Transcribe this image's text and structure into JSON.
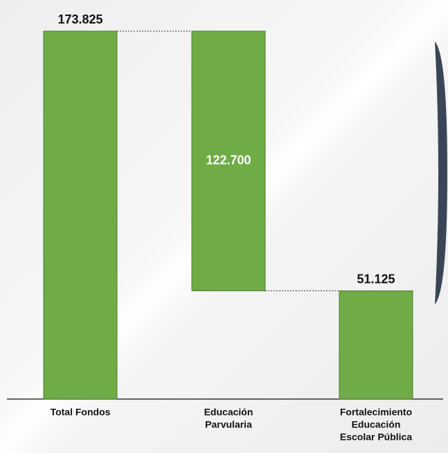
{
  "chart_data": {
    "type": "waterfall",
    "categories": [
      [
        "Total Fondos"
      ],
      [
        "Educación",
        "Parvularia"
      ],
      [
        "Fortalecimiento",
        "Educación",
        "Escolar Pública"
      ]
    ],
    "values": [
      173825,
      122700,
      51125
    ],
    "value_labels": [
      "173.825",
      "122.700",
      "51.125"
    ],
    "measures": [
      "absolute",
      "decrease",
      "absolute"
    ],
    "color": "#6fac46"
  }
}
